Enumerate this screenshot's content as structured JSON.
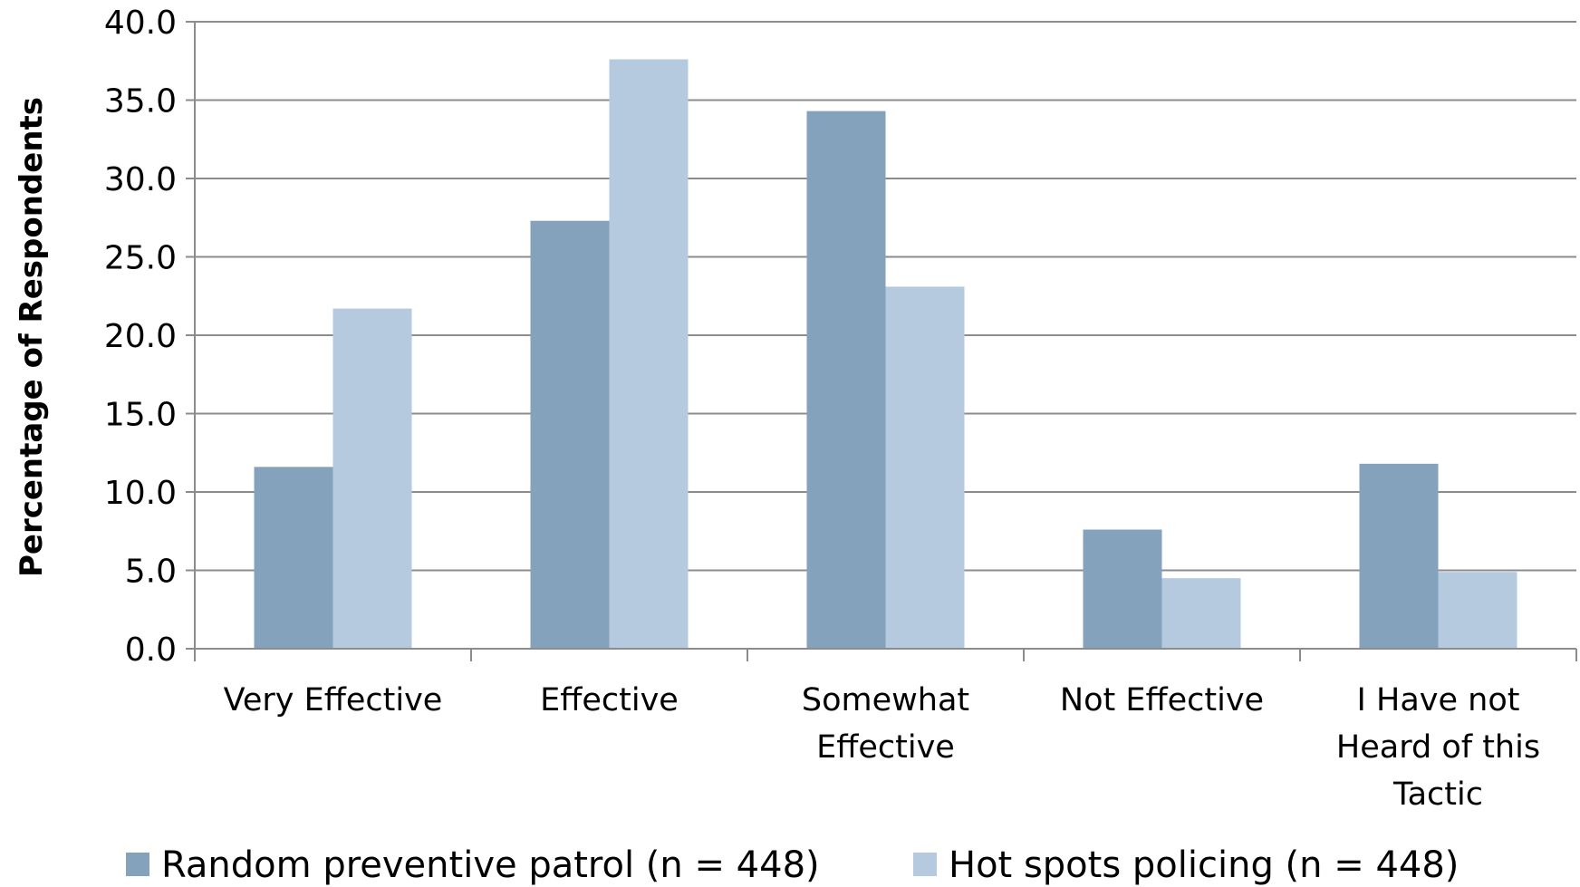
{
  "chart_data": {
    "type": "bar",
    "categories": [
      [
        "Very Effective"
      ],
      [
        "Effective"
      ],
      [
        "Somewhat",
        "Effective"
      ],
      [
        "Not Effective"
      ],
      [
        "I Have not",
        "Heard of this",
        "Tactic"
      ]
    ],
    "series": [
      {
        "name": "Random preventive patrol (n = 448)",
        "color": "#84a2bb",
        "values": [
          11.6,
          27.3,
          34.3,
          7.6,
          11.8
        ]
      },
      {
        "name": "Hot spots policing (n = 448)",
        "color": "#b5cadf",
        "values": [
          21.7,
          37.6,
          23.1,
          4.5,
          4.9
        ]
      }
    ],
    "ylabel": "Percentage of Respondents",
    "xlabel": "",
    "ylim": [
      0,
      40
    ],
    "yticks": [
      "0.0",
      "5.0",
      "10.0",
      "15.0",
      "20.0",
      "25.0",
      "30.0",
      "35.0",
      "40.0"
    ],
    "grid": true,
    "legend_position": "bottom"
  }
}
